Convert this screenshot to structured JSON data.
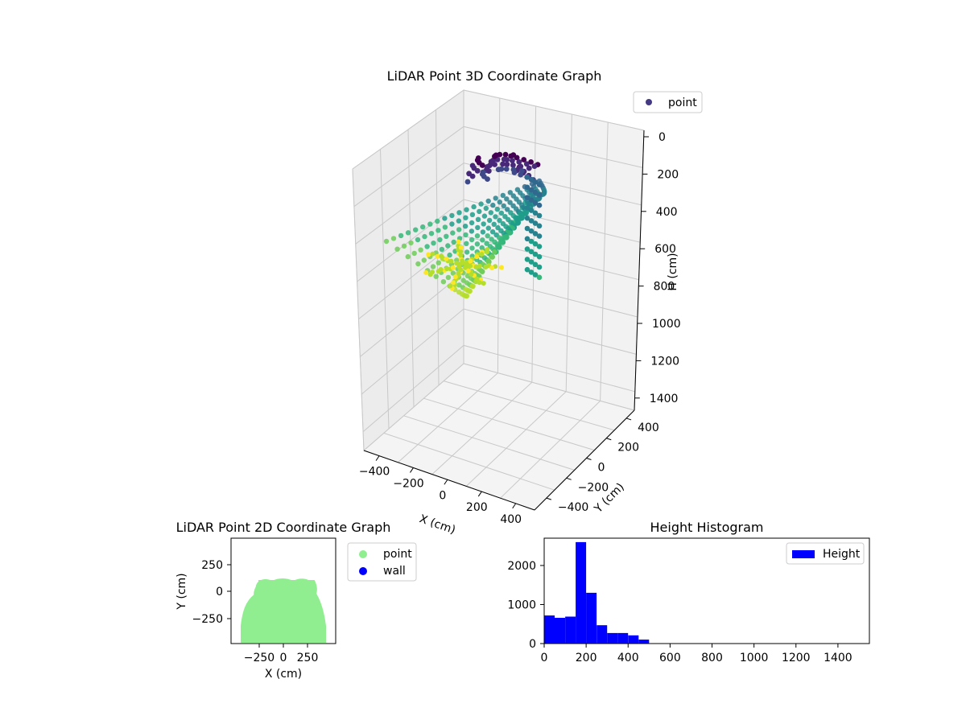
{
  "chart_data": [
    {
      "type": "scatter3d",
      "title": "LiDAR Point 3D Coordinate Graph",
      "xlabel": "X (cm)",
      "ylabel": "Y (cm)",
      "zlabel": "H (cm)",
      "xticks": [
        "−400",
        "−200",
        "0",
        "200",
        "400"
      ],
      "yticks": [
        "−400",
        "−200",
        "0",
        "200",
        "400"
      ],
      "zticks": [
        "0",
        "200",
        "400",
        "600",
        "800",
        "1000",
        "1200",
        "1400"
      ],
      "zlim": [
        0,
        1500
      ],
      "z_inverted": true,
      "colormap": "viridis",
      "legend": [
        {
          "label": "point",
          "color": "#443983"
        }
      ],
      "legend_position": "upper-right",
      "grid": true
    },
    {
      "type": "scatter",
      "title": "LiDAR Point 2D Coordinate Graph",
      "xlabel": "X (cm)",
      "ylabel": "Y (cm)",
      "xticks": [
        "−250",
        "0",
        "250"
      ],
      "yticks": [
        "250",
        "0",
        "−250"
      ],
      "xlim": [
        -480,
        480
      ],
      "ylim": [
        -480,
        480
      ],
      "series": [
        {
          "name": "point",
          "color": "#90ee90"
        },
        {
          "name": "wall",
          "color": "#0000ff"
        }
      ],
      "legend_position": "outside-right",
      "grid": false
    },
    {
      "type": "bar",
      "title": "Height Histogram",
      "xticks": [
        "0",
        "200",
        "400",
        "600",
        "800",
        "1000",
        "1200",
        "1400"
      ],
      "yticks": [
        "0",
        "1000",
        "2000"
      ],
      "xlim": [
        0,
        1550
      ],
      "ylim": [
        0,
        2700
      ],
      "bin_width": 50,
      "bins": [
        {
          "x0": 0,
          "count": 720
        },
        {
          "x0": 50,
          "count": 660
        },
        {
          "x0": 100,
          "count": 690
        },
        {
          "x0": 150,
          "count": 2600
        },
        {
          "x0": 200,
          "count": 1300
        },
        {
          "x0": 250,
          "count": 470
        },
        {
          "x0": 300,
          "count": 270
        },
        {
          "x0": 350,
          "count": 270
        },
        {
          "x0": 400,
          "count": 210
        },
        {
          "x0": 450,
          "count": 100
        }
      ],
      "series": [
        {
          "name": "Height",
          "color": "#0000ff"
        }
      ],
      "legend_position": "upper-right",
      "grid": false
    }
  ]
}
